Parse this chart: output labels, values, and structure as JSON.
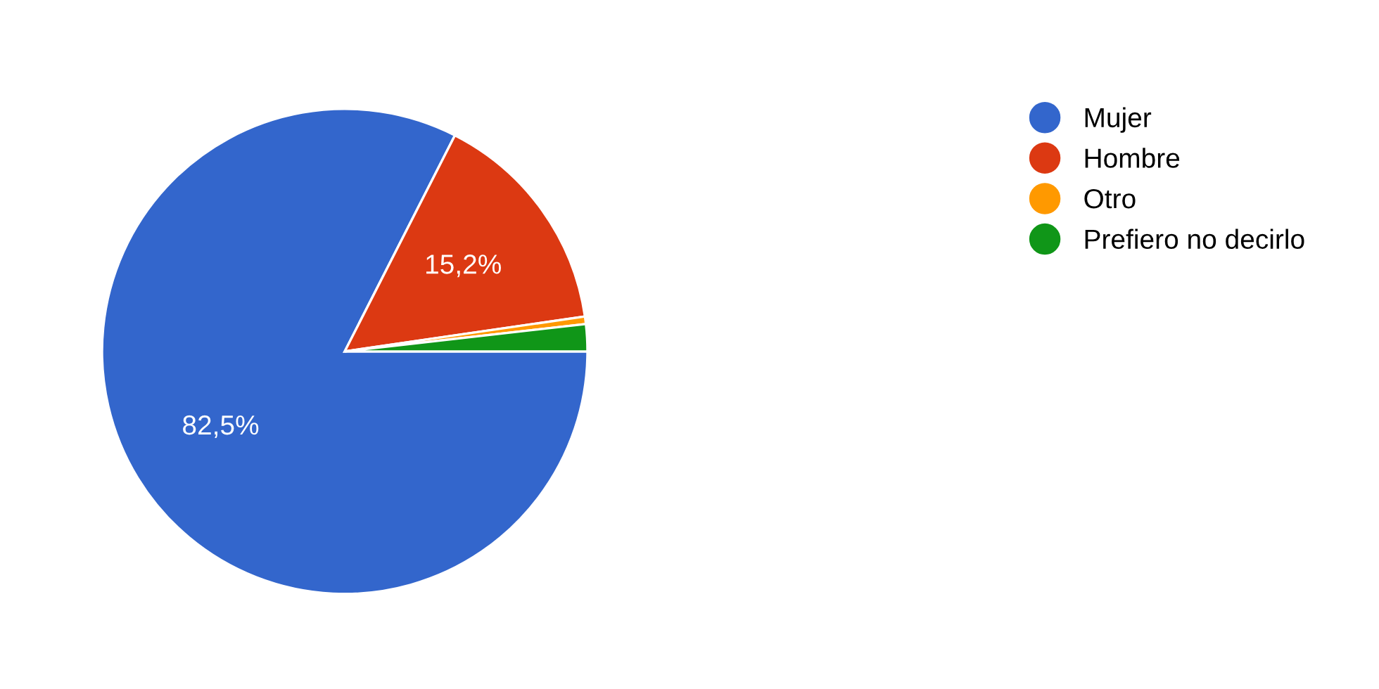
{
  "chart_data": {
    "type": "pie",
    "categories": [
      "Mujer",
      "Hombre",
      "Otro",
      "Prefiero no decirlo"
    ],
    "values": [
      82.5,
      15.2,
      0.5,
      1.8
    ],
    "colors": [
      "#3366cc",
      "#dc3912",
      "#ff9900",
      "#109618"
    ],
    "value_labels": [
      "82,5%",
      "15,2%",
      null,
      null
    ],
    "legend": "top right"
  }
}
